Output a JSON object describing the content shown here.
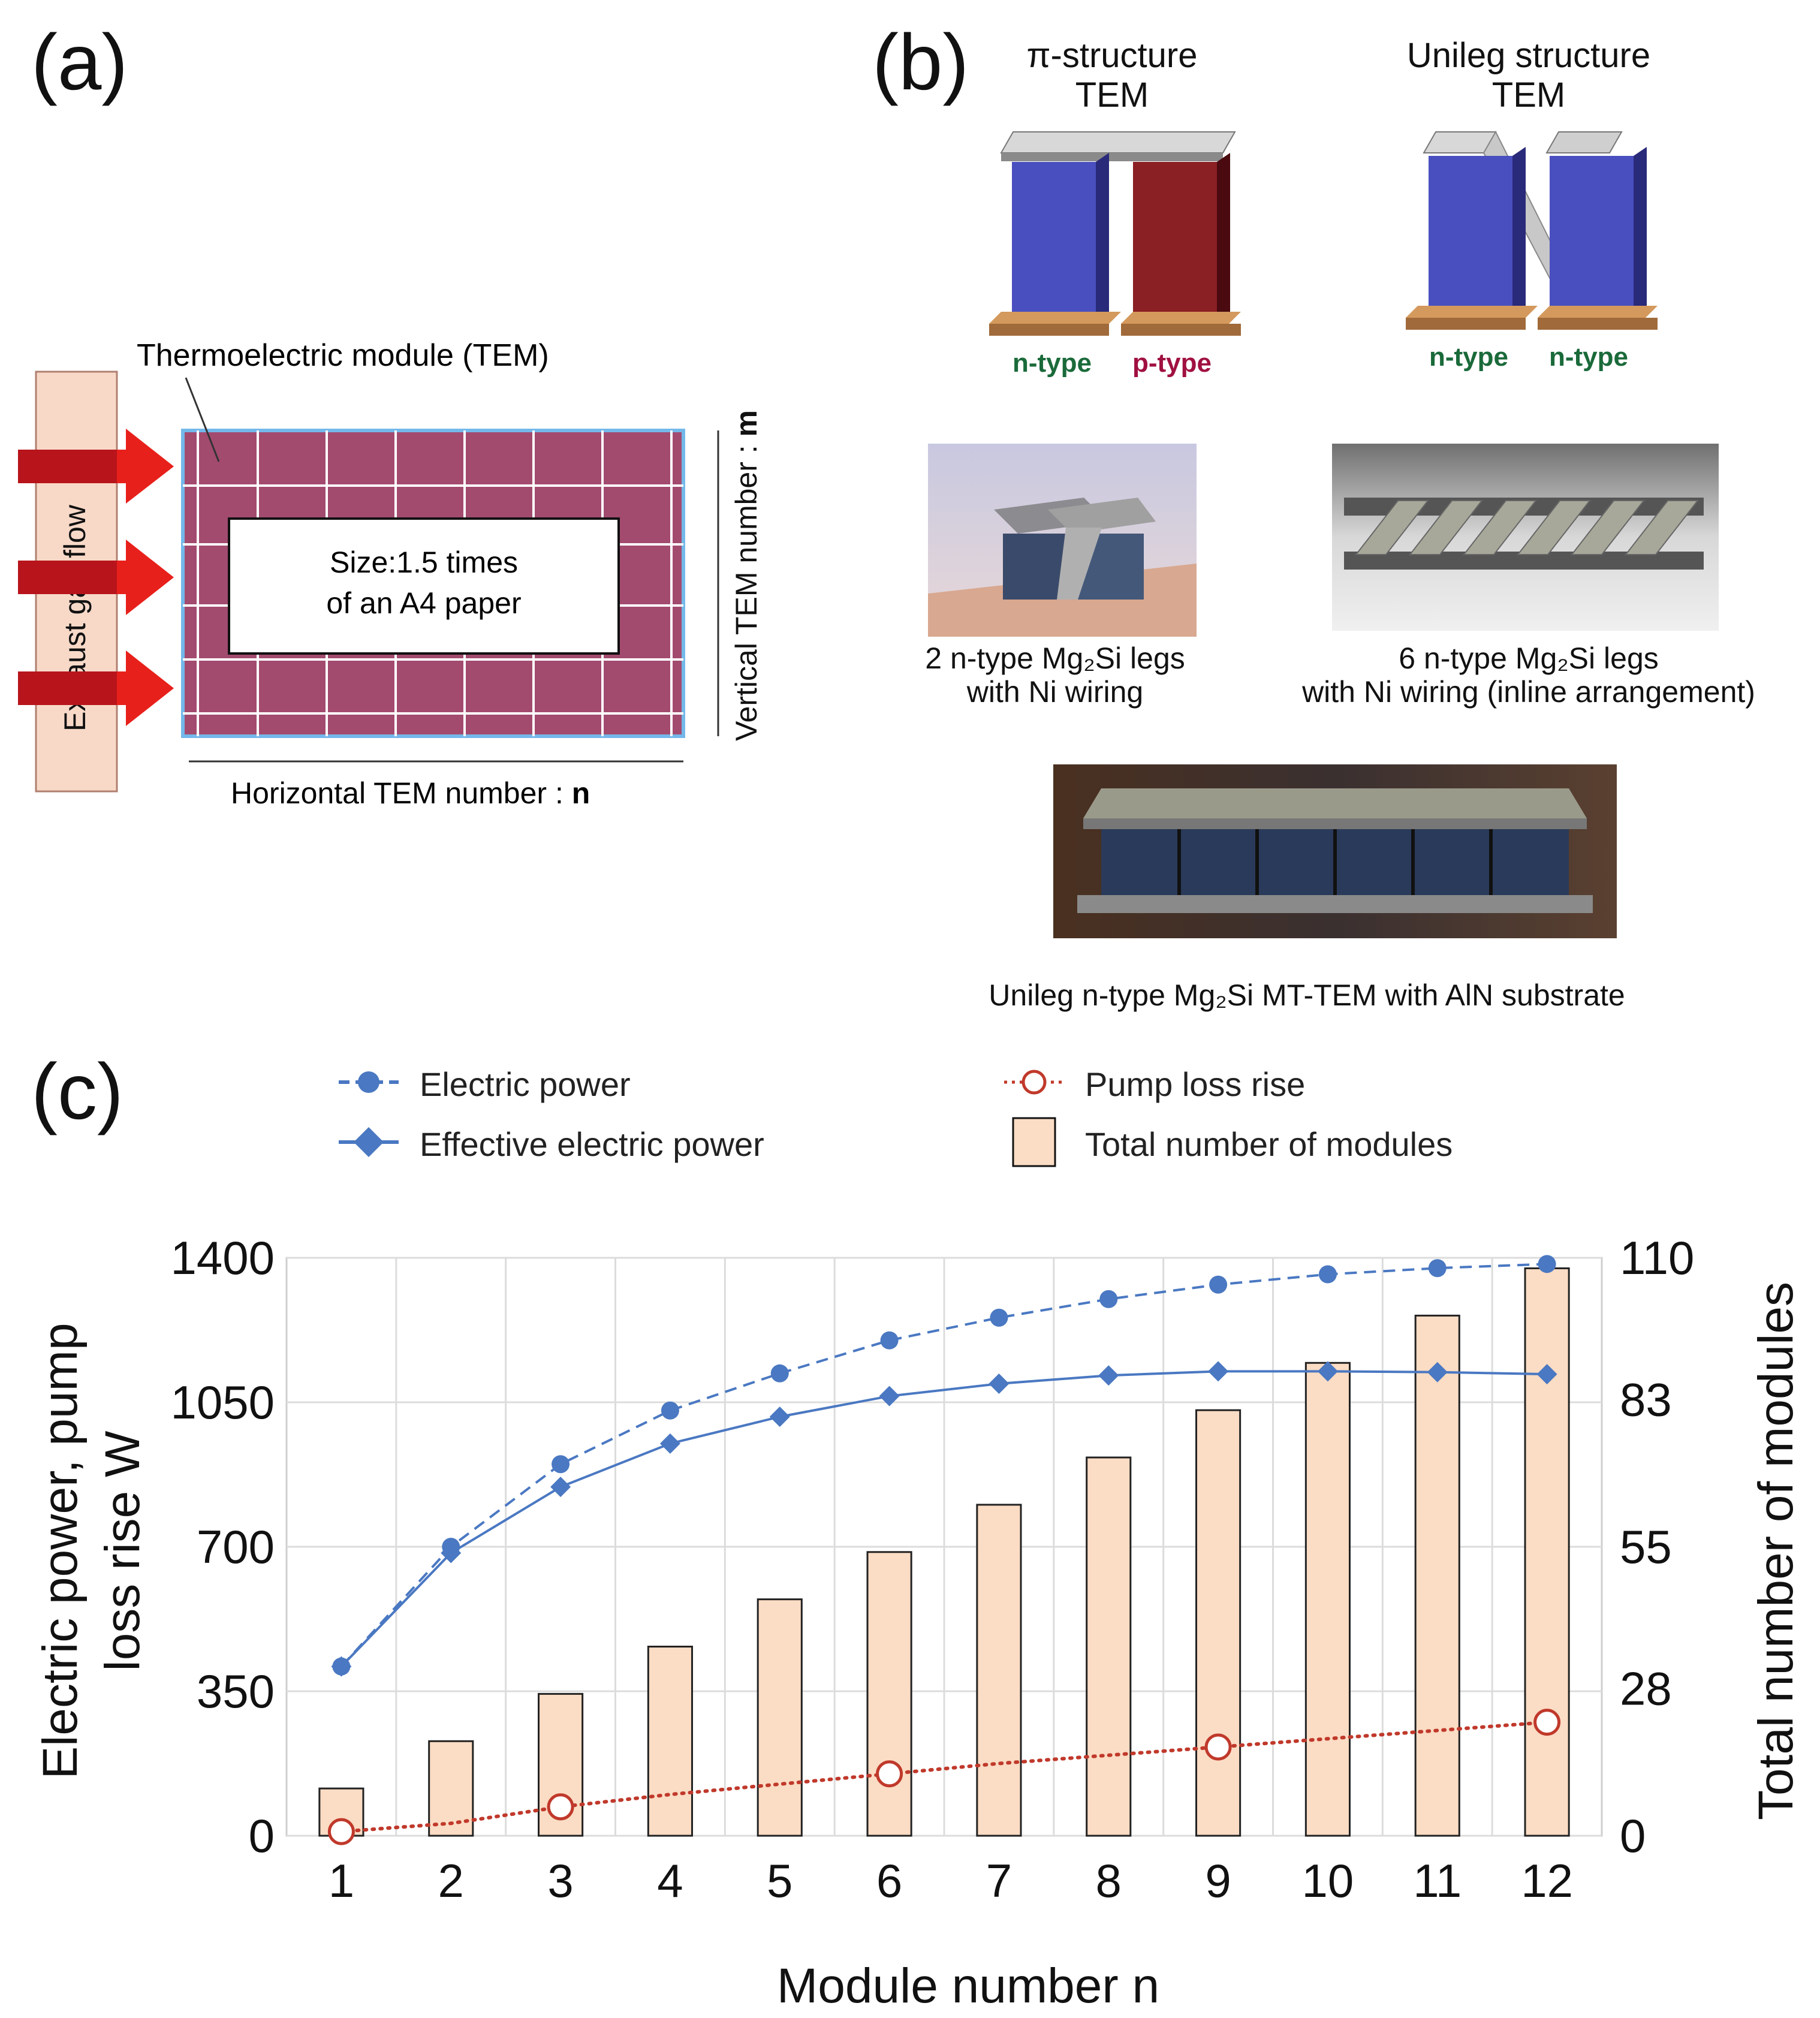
{
  "panel_a": {
    "label": "(a)",
    "tem_label": "Thermoelectric module (TEM)",
    "exhaust_label": "Exhaust gas flow",
    "size_line1": "Size:1.5 times",
    "size_line2": "of an A4 paper",
    "horizontal_label": "Horizontal TEM number : ",
    "horizontal_var": "n",
    "vertical_label": "Vertical TEM number : ",
    "vertical_var": "m",
    "colors": {
      "module": "#a34a6f",
      "arrow": "#e8201b",
      "exhaust_box": "#f8d9c8"
    }
  },
  "panel_b": {
    "label": "(b)",
    "pi_title_1": "π-structure",
    "pi_title_2": "TEM",
    "unileg_title_1": "Unileg structure",
    "unileg_title_2": "TEM",
    "pi_left_leg": "n-type",
    "pi_right_leg": "p-type",
    "uni_left_leg": "n-type",
    "uni_right_leg": "n-type",
    "photo1_caption_1": "2 n-type Mg₂Si legs",
    "photo1_caption_2": "with Ni wiring",
    "photo2_caption_1": "6 n-type Mg₂Si legs",
    "photo2_caption_2": "with Ni wiring (inline arrangement)",
    "photo3_caption": "Unileg n-type Mg₂Si MT-TEM with AlN substrate",
    "colors": {
      "n_type": "#1a6a3a",
      "p_type": "#a01040",
      "n_leg": "#4a4fbf",
      "p_leg": "#8a1f24"
    }
  },
  "panel_c": {
    "label": "(c)"
  },
  "chart_data": {
    "type": "bar+line",
    "xlabel": "Module number n",
    "ylabel_line1": "Electric power, pump",
    "ylabel_line2": "loss rise W",
    "y2label": "Total number of modules",
    "categories": [
      1,
      2,
      3,
      4,
      5,
      6,
      7,
      8,
      9,
      10,
      11,
      12
    ],
    "ylim": [
      0,
      1400
    ],
    "yticks": [
      0,
      350,
      700,
      1050,
      1400
    ],
    "y2lim": [
      0,
      110
    ],
    "y2ticks": [
      0,
      28,
      55,
      83,
      110
    ],
    "series": [
      {
        "name": "Electric power",
        "axis": "left",
        "style": "dashed",
        "marker": "circle",
        "color": "#4a78c2",
        "values": [
          410,
          700,
          900,
          1030,
          1120,
          1200,
          1255,
          1300,
          1335,
          1360,
          1375,
          1385
        ]
      },
      {
        "name": "Effective electric power",
        "axis": "left",
        "style": "solid",
        "marker": "diamond",
        "color": "#4a78c2",
        "values": [
          410,
          685,
          845,
          950,
          1015,
          1065,
          1095,
          1115,
          1125,
          1125,
          1123,
          1118
        ]
      },
      {
        "name": "Pump loss rise",
        "axis": "left",
        "style": "dotted",
        "marker": "open-circle",
        "color": "#c0392b",
        "values": [
          10,
          30,
          70,
          100,
          125,
          150,
          175,
          195,
          215,
          235,
          255,
          275
        ],
        "marked_points": [
          1,
          3,
          6,
          9,
          12
        ]
      },
      {
        "name": "Total number of modules",
        "axis": "right",
        "type": "bar",
        "color": "#fbdcc4",
        "values": [
          9,
          18,
          27,
          36,
          45,
          54,
          63,
          72,
          81,
          90,
          99,
          108
        ]
      }
    ],
    "legend": {
      "electric_power": "Electric power",
      "effective_power": "Effective electric power",
      "pump_loss": "Pump loss rise",
      "total_modules": "Total number of modules"
    }
  }
}
